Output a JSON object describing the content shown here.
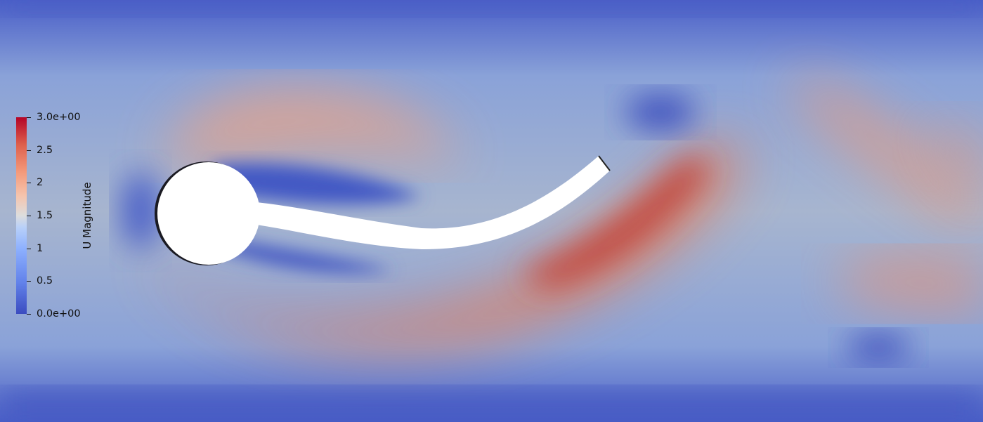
{
  "colorbar": {
    "title": "U Magnitude",
    "range": [
      0,
      3
    ],
    "ticks": [
      {
        "value": 3.0,
        "label": "3.0e+00"
      },
      {
        "value": 2.5,
        "label": "2.5"
      },
      {
        "value": 2.0,
        "label": "2"
      },
      {
        "value": 1.5,
        "label": "1.5"
      },
      {
        "value": 1.0,
        "label": "1"
      },
      {
        "value": 0.5,
        "label": "0.5"
      },
      {
        "value": 0.0,
        "label": "0.0e+00"
      }
    ],
    "colormap": [
      "#3b4cc0",
      "#6282ea",
      "#8db0fe",
      "#b8d0f9",
      "#dddddd",
      "#f5c4ad",
      "#f49a7b",
      "#de604d",
      "#b40426"
    ]
  },
  "scene": {
    "background": "#3b4cc0",
    "body_color": "#ffffff"
  }
}
